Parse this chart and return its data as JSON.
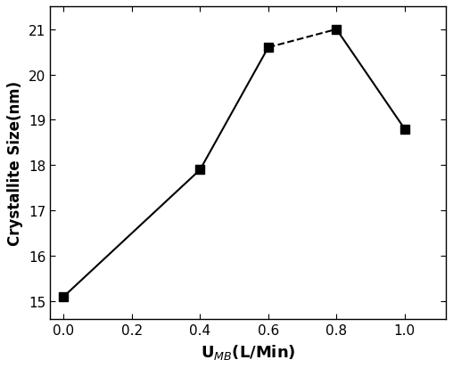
{
  "x": [
    0.0,
    0.4,
    0.6,
    0.8,
    1.0
  ],
  "y": [
    15.1,
    17.9,
    20.6,
    21.0,
    18.8
  ],
  "marker": "s",
  "marker_size": 7,
  "marker_color": "black",
  "line_color": "black",
  "line_width": 1.5,
  "xlabel": "U$_{MB}$(L/Min)",
  "ylabel": "Crystallite Size(nm)",
  "xlim": [
    -0.04,
    1.12
  ],
  "ylim": [
    14.6,
    21.5
  ],
  "xticks": [
    0.0,
    0.2,
    0.4,
    0.6,
    0.8,
    1.0
  ],
  "yticks": [
    15,
    16,
    17,
    18,
    19,
    20,
    21
  ],
  "xlabel_fontsize": 13,
  "ylabel_fontsize": 12,
  "tick_fontsize": 11,
  "dashed_segment_idx": 2,
  "background_color": "#ffffff",
  "figsize": [
    5.08,
    4.14
  ],
  "dpi": 100
}
